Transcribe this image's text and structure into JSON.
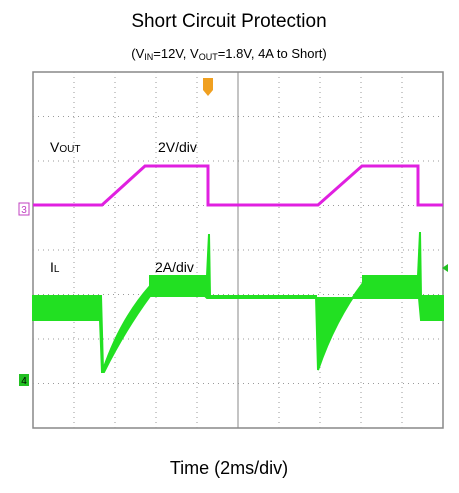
{
  "title": "Short Circuit Protection",
  "subtitle": {
    "open": "(V",
    "vin_sub": "IN",
    "mid": "=12V, V",
    "vout_sub": "OUT",
    "close": "=1.8V, 4A to Short)"
  },
  "channels": [
    {
      "symbol": "V",
      "sub": "OUT",
      "scale": "2V/div",
      "marker": "3"
    },
    {
      "symbol": "I",
      "sub": "L",
      "scale": "2A/div",
      "marker": "4"
    }
  ],
  "x_label": "Time (2ms/div)"
}
